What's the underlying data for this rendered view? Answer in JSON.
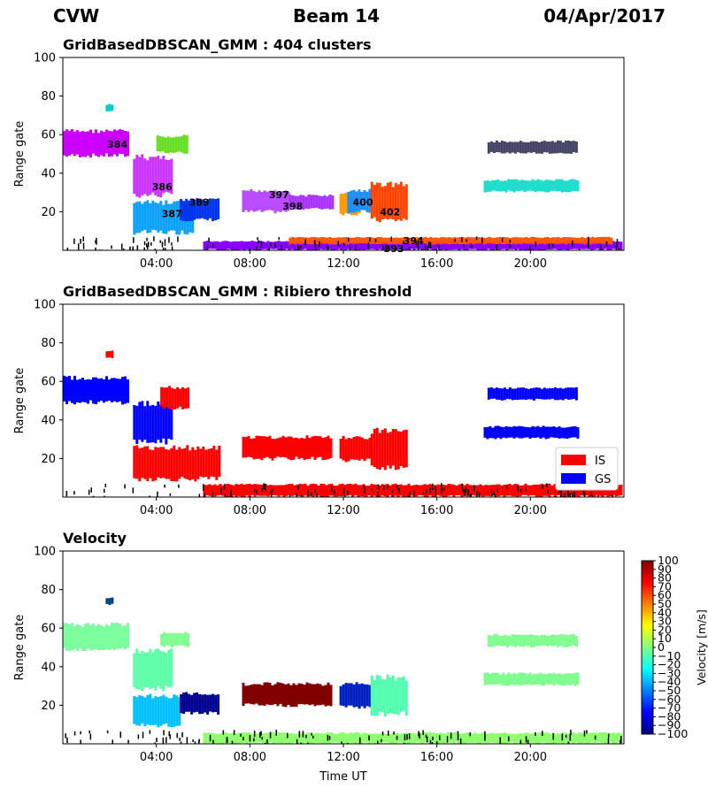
{
  "header": {
    "radar": "CVW",
    "beam": "Beam 14",
    "date": "04/Apr/2017"
  },
  "chart_data": [
    {
      "type": "scatter",
      "title": "GridBasedDBSCAN_GMM : 404 clusters",
      "xlabel": "",
      "ylabel": "Range gate",
      "xlim": [
        "00:00",
        "24:00"
      ],
      "ylim": [
        0,
        100
      ],
      "yticks": [
        20,
        40,
        60,
        80,
        100
      ],
      "xticks": [
        "04:00",
        "08:00",
        "12:00",
        "16:00",
        "20:00"
      ],
      "annotations": [
        {
          "text": "384",
          "time": "02:20",
          "gate": 55
        },
        {
          "text": "386",
          "time": "04:15",
          "gate": 33
        },
        {
          "text": "387",
          "time": "04:40",
          "gate": 19
        },
        {
          "text": "389",
          "time": "05:50",
          "gate": 25
        },
        {
          "text": "397",
          "time": "09:15",
          "gate": 29
        },
        {
          "text": "398",
          "time": "09:50",
          "gate": 23
        },
        {
          "text": "400",
          "time": "12:50",
          "gate": 25
        },
        {
          "text": "402",
          "time": "14:00",
          "gate": 20
        },
        {
          "text": "394",
          "time": "15:00",
          "gate": 5
        },
        {
          "text": "393",
          "time": "14:10",
          "gate": 1
        }
      ],
      "regions": [
        {
          "t0": "00:00",
          "t1": "02:50",
          "g0": 48,
          "g1": 63,
          "color": "#cc00ff"
        },
        {
          "t0": "03:00",
          "t1": "04:40",
          "g0": 27,
          "g1": 50,
          "color": "#cc33ff"
        },
        {
          "t0": "03:00",
          "t1": "05:30",
          "g0": 8,
          "g1": 26,
          "color": "#0aa0ff"
        },
        {
          "t0": "05:00",
          "t1": "06:40",
          "g0": 15,
          "g1": 27,
          "color": "#0033ee"
        },
        {
          "t0": "07:40",
          "t1": "09:40",
          "g0": 19,
          "g1": 32,
          "color": "#b94dff"
        },
        {
          "t0": "09:40",
          "t1": "11:30",
          "g0": 21,
          "g1": 29,
          "color": "#aa33ff"
        },
        {
          "t0": "11:50",
          "t1": "12:40",
          "g0": 18,
          "g1": 30,
          "color": "#ff9900"
        },
        {
          "t0": "12:10",
          "t1": "13:10",
          "g0": 19,
          "g1": 32,
          "color": "#1c8fff"
        },
        {
          "t0": "13:10",
          "t1": "14:40",
          "g0": 14,
          "g1": 36,
          "color": "#ff4400"
        },
        {
          "t0": "06:00",
          "t1": "23:50",
          "g0": 0,
          "g1": 5,
          "color": "#8800ff"
        },
        {
          "t0": "09:40",
          "t1": "23:30",
          "g0": 3,
          "g1": 7,
          "color": "#ff5500"
        },
        {
          "t0": "18:00",
          "t1": "22:00",
          "g0": 30,
          "g1": 37,
          "color": "#22ddcc"
        },
        {
          "t0": "18:10",
          "t1": "22:00",
          "g0": 50,
          "g1": 57,
          "color": "#444466"
        },
        {
          "t0": "04:00",
          "t1": "05:20",
          "g0": 50,
          "g1": 60,
          "color": "#66dd22"
        },
        {
          "t0": "01:50",
          "t1": "02:10",
          "g0": 72,
          "g1": 76,
          "color": "#00cccc"
        }
      ]
    },
    {
      "type": "scatter",
      "title": "GridBasedDBSCAN_GMM : Ribiero threshold",
      "xlabel": "",
      "ylabel": "Range gate",
      "xlim": [
        "00:00",
        "24:00"
      ],
      "ylim": [
        0,
        100
      ],
      "yticks": [
        20,
        40,
        60,
        80,
        100
      ],
      "xticks": [
        "04:00",
        "08:00",
        "12:00",
        "16:00",
        "20:00"
      ],
      "legend": {
        "position": "lower-right",
        "entries": [
          {
            "label": "IS",
            "color": "#ff0000"
          },
          {
            "label": "GS",
            "color": "#0000ff"
          }
        ]
      },
      "regions": [
        {
          "t0": "00:00",
          "t1": "02:50",
          "g0": 48,
          "g1": 63,
          "color": "#0000ff"
        },
        {
          "t0": "03:00",
          "t1": "04:40",
          "g0": 27,
          "g1": 50,
          "color": "#0000ff"
        },
        {
          "t0": "03:00",
          "t1": "06:40",
          "g0": 8,
          "g1": 27,
          "color": "#ff0000"
        },
        {
          "t0": "07:40",
          "t1": "11:30",
          "g0": 19,
          "g1": 32,
          "color": "#ff0000"
        },
        {
          "t0": "11:50",
          "t1": "13:10",
          "g0": 18,
          "g1": 32,
          "color": "#ff0000"
        },
        {
          "t0": "13:10",
          "t1": "14:40",
          "g0": 14,
          "g1": 36,
          "color": "#ff0000"
        },
        {
          "t0": "06:00",
          "t1": "23:50",
          "g0": 0,
          "g1": 7,
          "color": "#ff0000"
        },
        {
          "t0": "18:00",
          "t1": "22:00",
          "g0": 30,
          "g1": 37,
          "color": "#0000ff"
        },
        {
          "t0": "18:10",
          "t1": "22:00",
          "g0": 50,
          "g1": 57,
          "color": "#0000ff"
        },
        {
          "t0": "04:10",
          "t1": "05:20",
          "g0": 45,
          "g1": 58,
          "color": "#ff0000"
        },
        {
          "t0": "01:50",
          "t1": "02:10",
          "g0": 72,
          "g1": 76,
          "color": "#ff0000"
        }
      ]
    },
    {
      "type": "scatter",
      "title": "Velocity",
      "xlabel": "Time UT",
      "ylabel": "Range gate",
      "xlim": [
        "00:00",
        "24:00"
      ],
      "ylim": [
        0,
        100
      ],
      "yticks": [
        20,
        40,
        60,
        80,
        100
      ],
      "xticks": [
        "04:00",
        "08:00",
        "12:00",
        "16:00",
        "20:00"
      ],
      "colorbar": {
        "label": "Velocity [m/s]",
        "range": [
          -100,
          100
        ],
        "ticks": [
          "100",
          "90",
          "80",
          "70",
          "60",
          "50",
          "40",
          "30",
          "20",
          "10",
          "0",
          "−10",
          "−20",
          "−30",
          "−40",
          "−50",
          "−60",
          "−70",
          "−80",
          "−90",
          "−100"
        ],
        "colors": [
          "#800000",
          "#ff0000",
          "#ff8000",
          "#ffff00",
          "#80ff80",
          "#00ffff",
          "#0080ff",
          "#0000ff",
          "#000080"
        ]
      },
      "regions": [
        {
          "t0": "00:00",
          "t1": "02:50",
          "g0": 48,
          "g1": 63,
          "color": "#7dffa0"
        },
        {
          "t0": "03:00",
          "t1": "04:40",
          "g0": 27,
          "g1": 50,
          "color": "#5dffa8"
        },
        {
          "t0": "03:00",
          "t1": "05:00",
          "g0": 8,
          "g1": 26,
          "color": "#00c0ff"
        },
        {
          "t0": "05:00",
          "t1": "06:40",
          "g0": 15,
          "g1": 27,
          "color": "#000090"
        },
        {
          "t0": "07:40",
          "t1": "11:30",
          "g0": 19,
          "g1": 32,
          "color": "#800000"
        },
        {
          "t0": "11:50",
          "t1": "13:10",
          "g0": 18,
          "g1": 32,
          "color": "#0020c0"
        },
        {
          "t0": "13:10",
          "t1": "14:40",
          "g0": 14,
          "g1": 36,
          "color": "#50ffb0"
        },
        {
          "t0": "06:00",
          "t1": "23:50",
          "g0": 0,
          "g1": 6,
          "color": "#90ff70"
        },
        {
          "t0": "18:00",
          "t1": "22:00",
          "g0": 30,
          "g1": 37,
          "color": "#80ff90"
        },
        {
          "t0": "18:10",
          "t1": "22:00",
          "g0": 50,
          "g1": 57,
          "color": "#80ff90"
        },
        {
          "t0": "04:10",
          "t1": "05:20",
          "g0": 50,
          "g1": 58,
          "color": "#80ff90"
        },
        {
          "t0": "01:50",
          "t1": "02:10",
          "g0": 72,
          "g1": 76,
          "color": "#004080"
        }
      ]
    }
  ]
}
